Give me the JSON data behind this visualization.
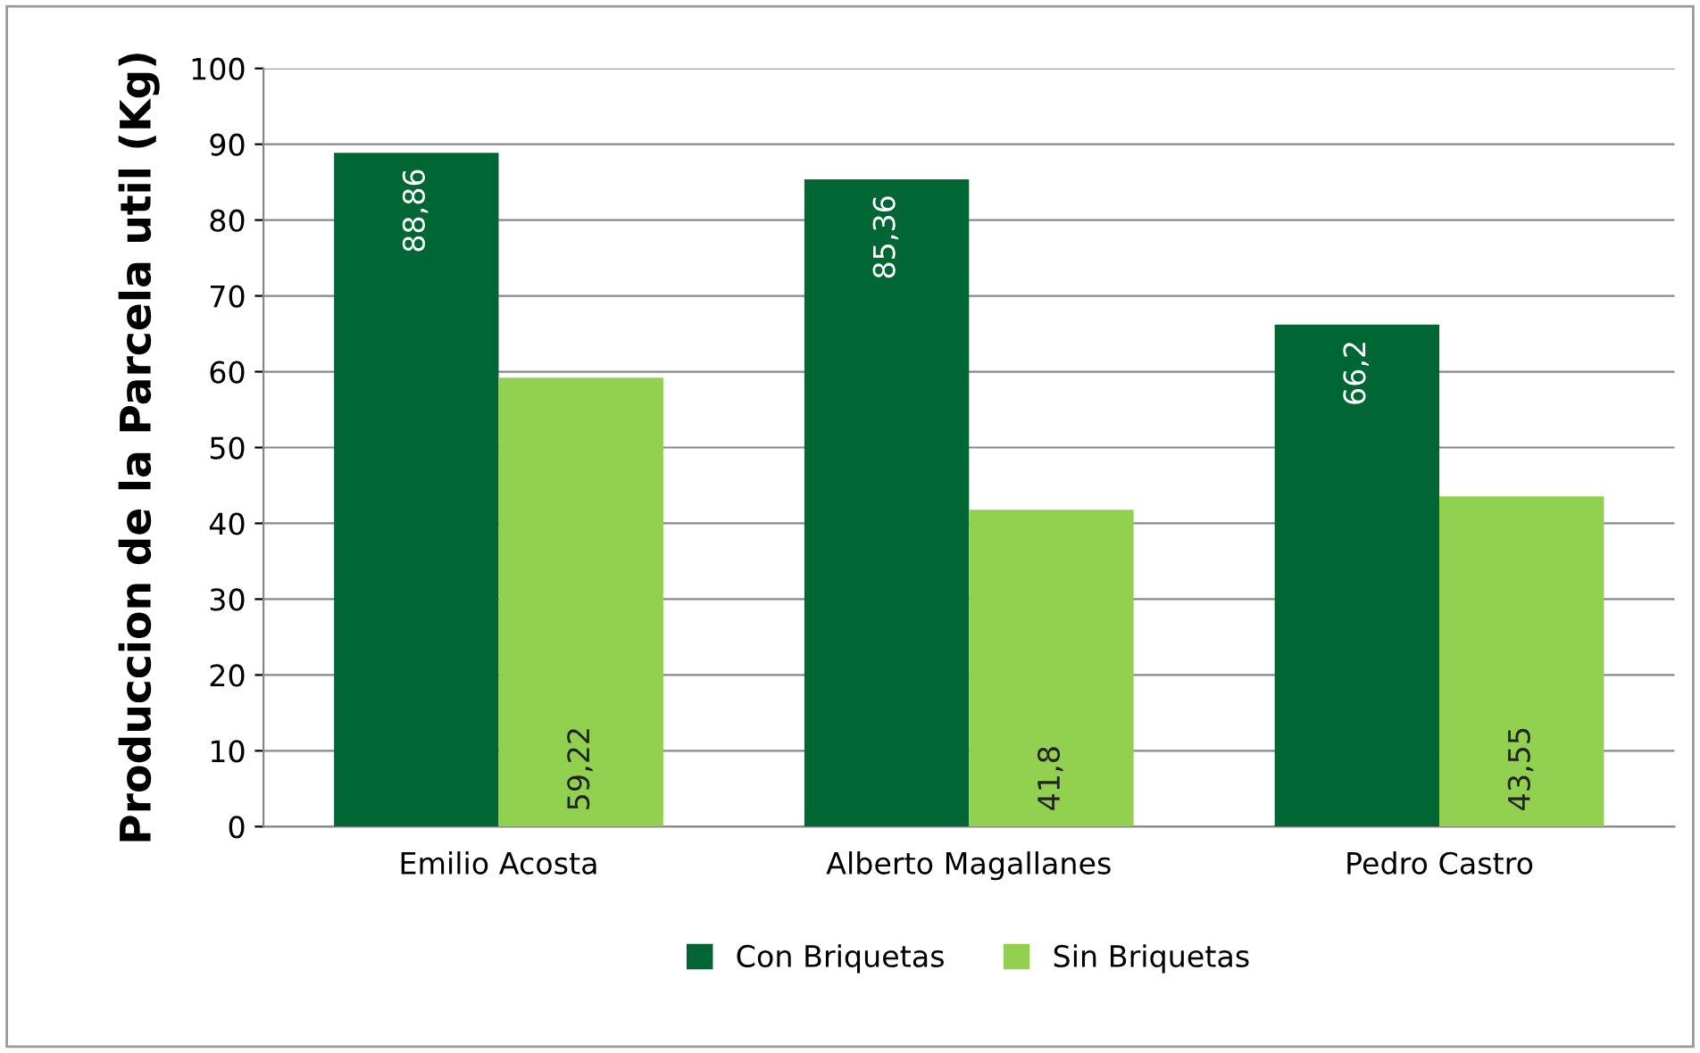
{
  "chart_data": {
    "type": "bar",
    "ylabel": "Produccion de la Parcela util (Kg)",
    "categories": [
      "Emilio Acosta",
      "Alberto Magallanes",
      "Pedro Castro"
    ],
    "series": [
      {
        "name": "Con Briquetas",
        "color": "#006633",
        "values": [
          88.86,
          85.36,
          66.2
        ],
        "value_labels": [
          "88,86",
          "85,36",
          "66,2"
        ]
      },
      {
        "name": "Sin Briquetas",
        "color": "#92d050",
        "values": [
          59.22,
          41.8,
          43.55
        ],
        "value_labels": [
          "59,22",
          "41,8",
          "43,55"
        ]
      }
    ],
    "ylim": [
      0,
      100
    ],
    "yticks": [
      0,
      10,
      20,
      30,
      40,
      50,
      60,
      70,
      80,
      90,
      100
    ],
    "grid": "y",
    "legend": "bottom"
  }
}
